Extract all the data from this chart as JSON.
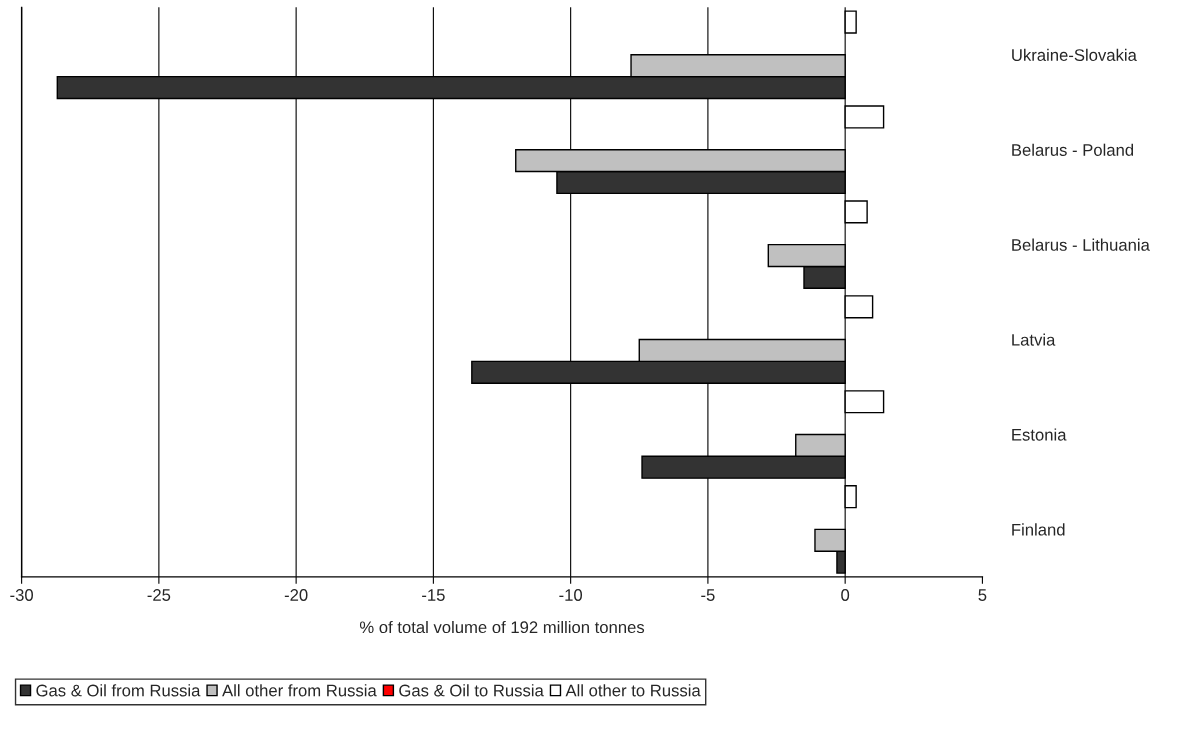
{
  "chart_data": {
    "type": "bar",
    "orientation": "horizontal",
    "categories": [
      "Ukraine-Slovakia",
      "Belarus - Poland",
      "Belarus - Lithuania",
      "Latvia",
      "Estonia",
      "Finland"
    ],
    "series": [
      {
        "name": "Gas & Oil from Russia",
        "color": "#333333",
        "values": [
          -28.7,
          -10.5,
          -1.5,
          -13.6,
          -7.4,
          -0.3
        ]
      },
      {
        "name": "All other from Russia",
        "color": "#c0c0c0",
        "values": [
          -7.8,
          -12.0,
          -2.8,
          -7.5,
          -1.8,
          -1.1
        ]
      },
      {
        "name": "Gas & Oil to Russia",
        "color": "#ff0000",
        "values": [
          null,
          null,
          null,
          null,
          null,
          null
        ]
      },
      {
        "name": "All other to Russia",
        "color": "#ffffff",
        "values": [
          0.4,
          1.4,
          0.8,
          1.0,
          1.4,
          0.4
        ]
      }
    ],
    "xlabel": "% of total volume of 192 million tonnes",
    "xlim": [
      -30,
      5
    ],
    "xticks": [
      -30,
      -25,
      -20,
      -15,
      -10,
      -5,
      0,
      5
    ],
    "grid": "x",
    "legend": "bottom"
  }
}
